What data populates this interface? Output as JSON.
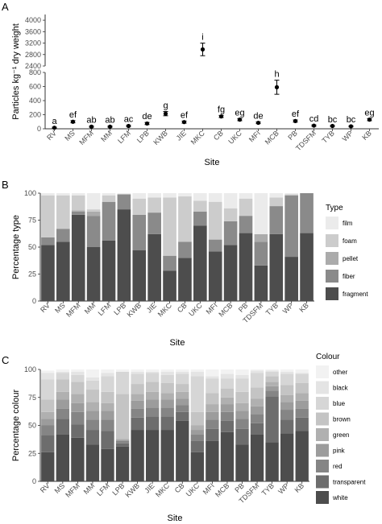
{
  "figure": {
    "panel_letters": [
      "A",
      "B",
      "C"
    ],
    "sites": [
      "RV",
      "MS",
      "MFM",
      "MM",
      "LFM",
      "LPB",
      "KWB",
      "JIE",
      "MKC",
      "CB",
      "UKC",
      "MFI",
      "MCB",
      "PB",
      "TDSFM",
      "TYB",
      "WP",
      "KB"
    ]
  },
  "chart_data": [
    {
      "type": "scatter",
      "panel": "A",
      "xlabel": "Site",
      "ylabel": "Particles kg⁻¹ dry weight",
      "axis_break": true,
      "lower_ylim": [
        0,
        800
      ],
      "lower_yticks": [
        "0",
        "200",
        "400",
        "600",
        "800"
      ],
      "upper_ylim": [
        2400,
        4200
      ],
      "upper_yticks": [
        "2400",
        "2800",
        "3200",
        "3600",
        "4000"
      ],
      "grid": false,
      "categories": [
        "RV",
        "MS",
        "MFM",
        "MM",
        "LFM",
        "LPB",
        "KWB",
        "JIE",
        "MKC",
        "CB",
        "UKC",
        "MFI",
        "MCB",
        "PB",
        "TDSFM",
        "TYB",
        "WP",
        "KB"
      ],
      "means": [
        15,
        100,
        30,
        30,
        40,
        75,
        215,
        95,
        2980,
        175,
        130,
        85,
        590,
        110,
        45,
        40,
        35,
        130
      ],
      "errors": [
        8,
        15,
        8,
        8,
        10,
        15,
        30,
        15,
        220,
        15,
        15,
        12,
        100,
        15,
        10,
        8,
        8,
        15
      ],
      "significance_letters": [
        "a",
        "ef",
        "ab",
        "ab",
        "ac",
        "de",
        "g",
        "ef",
        "i",
        "fg",
        "eg",
        "de",
        "h",
        "ef",
        "cd",
        "bc",
        "bc",
        "eg"
      ]
    },
    {
      "type": "bar",
      "stacked": true,
      "panel": "B",
      "xlabel": "Site",
      "ylabel": "Percentage type",
      "ylim": [
        0,
        100
      ],
      "yticks": [
        "0",
        "25",
        "50",
        "75",
        "100"
      ],
      "legend_title": "Type",
      "legend_position": "right",
      "categories": [
        "RV",
        "MS",
        "MFM",
        "MM",
        "LFM",
        "LPB",
        "KWB",
        "JIE",
        "MKC",
        "CB",
        "UKC",
        "MFI",
        "MCB",
        "PB",
        "TDSFM",
        "TYB",
        "WP",
        "KB"
      ],
      "series": [
        {
          "name": "fragment",
          "color": "#4d4d4d",
          "values": [
            52,
            55,
            80,
            50,
            56,
            85,
            47,
            62,
            28,
            40,
            70,
            46,
            52,
            63,
            33,
            62,
            41,
            63
          ]
        },
        {
          "name": "fiber",
          "color": "#8a8a8a",
          "values": [
            7,
            12,
            3,
            29,
            36,
            14,
            33,
            20,
            14,
            15,
            13,
            11,
            22,
            16,
            22,
            26,
            57,
            37
          ]
        },
        {
          "name": "pellet",
          "color": "#ababab",
          "values": [
            0,
            0,
            1,
            4,
            0,
            0,
            0,
            0,
            0,
            0,
            0,
            0,
            0,
            0,
            7,
            0,
            0,
            0
          ]
        },
        {
          "name": "foam",
          "color": "#cccccc",
          "values": [
            39,
            31,
            14,
            2,
            6,
            0,
            15,
            14,
            54,
            42,
            10,
            35,
            12,
            16,
            0,
            8,
            1,
            0
          ]
        },
        {
          "name": "film",
          "color": "#ebebeb",
          "values": [
            2,
            2,
            2,
            15,
            2,
            1,
            5,
            4,
            4,
            3,
            7,
            8,
            14,
            5,
            38,
            4,
            1,
            0
          ]
        }
      ]
    },
    {
      "type": "bar",
      "stacked": true,
      "panel": "C",
      "xlabel": "Site",
      "ylabel": "Percentage colour",
      "ylim": [
        0,
        100
      ],
      "yticks": [
        "0",
        "25",
        "50",
        "75",
        "100"
      ],
      "legend_title": "Colour",
      "legend_position": "right",
      "categories": [
        "RV",
        "MS",
        "MFM",
        "MM",
        "LFM",
        "LPB",
        "KWB",
        "JIE",
        "MKC",
        "CB",
        "UKC",
        "MFI",
        "MCB",
        "PB",
        "TDSFM",
        "TYB",
        "WP",
        "KB"
      ],
      "series": [
        {
          "name": "white",
          "color": "#4d4d4d",
          "values": [
            26,
            42,
            39,
            33,
            29,
            31,
            46,
            46,
            46,
            54,
            26,
            36,
            44,
            33,
            42,
            35,
            43,
            45
          ]
        },
        {
          "name": "transparent",
          "color": "#6d6d6d",
          "values": [
            15,
            14,
            12,
            13,
            16,
            3,
            11,
            12,
            12,
            8,
            10,
            11,
            10,
            14,
            10,
            41,
            12,
            12
          ]
        },
        {
          "name": "red",
          "color": "#858585",
          "values": [
            9,
            9,
            11,
            9,
            10,
            2,
            8,
            8,
            8,
            6,
            6,
            8,
            8,
            9,
            8,
            5,
            9,
            8
          ]
        },
        {
          "name": "pink",
          "color": "#9c9c9c",
          "values": [
            6,
            8,
            8,
            8,
            8,
            1,
            7,
            7,
            7,
            6,
            4,
            7,
            7,
            7,
            7,
            4,
            7,
            7
          ]
        },
        {
          "name": "green",
          "color": "#b0b0b0",
          "values": [
            6,
            7,
            8,
            8,
            7,
            1,
            6,
            7,
            6,
            6,
            4,
            7,
            6,
            7,
            7,
            4,
            6,
            7
          ]
        },
        {
          "name": "brown",
          "color": "#c4c4c4",
          "values": [
            11,
            11,
            11,
            11,
            10,
            40,
            9,
            9,
            9,
            7,
            12,
            10,
            8,
            10,
            10,
            5,
            9,
            9
          ]
        },
        {
          "name": "blue",
          "color": "#d6d6d6",
          "values": [
            18,
            6,
            6,
            8,
            14,
            20,
            9,
            8,
            7,
            9,
            32,
            13,
            9,
            12,
            13,
            4,
            10,
            8
          ]
        },
        {
          "name": "black",
          "color": "#e4e4e4",
          "values": [
            6,
            1,
            3,
            3,
            3,
            0,
            2,
            1,
            3,
            2,
            4,
            2,
            4,
            3,
            2,
            1,
            2,
            1
          ]
        },
        {
          "name": "other",
          "color": "#f2f2f2",
          "values": [
            2,
            2,
            2,
            7,
            3,
            2,
            2,
            2,
            2,
            2,
            2,
            6,
            4,
            5,
            1,
            1,
            2,
            3
          ]
        }
      ]
    }
  ]
}
